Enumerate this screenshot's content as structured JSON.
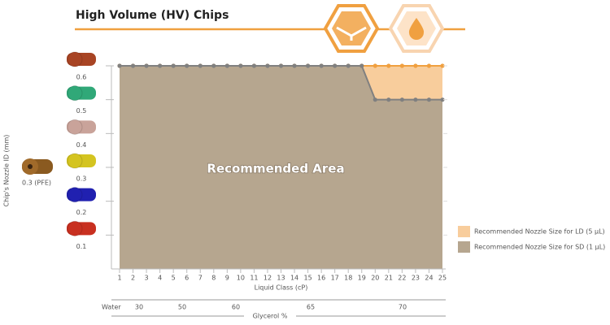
{
  "chart_data": {
    "type": "area",
    "title": "High Volume (HV) Chips",
    "xlabel": "Liquid Class (cP)",
    "ylabel": "Chip's Nozzle ID (mm)",
    "annotation": "Recommended Area",
    "extra_tick_label": "0.3 (PFE)",
    "x": [
      1,
      2,
      3,
      4,
      5,
      6,
      7,
      8,
      9,
      10,
      11,
      12,
      13,
      14,
      15,
      16,
      17,
      18,
      19,
      20,
      21,
      22,
      23,
      24,
      25
    ],
    "xlim": [
      1,
      25
    ],
    "xticks": [
      1,
      2,
      3,
      4,
      5,
      6,
      7,
      8,
      9,
      10,
      11,
      12,
      13,
      14,
      15,
      16,
      17,
      18,
      19,
      20,
      21,
      22,
      23,
      24,
      25
    ],
    "ylim": [
      0,
      0.6
    ],
    "yticks": [
      0.1,
      0.2,
      0.3,
      0.4,
      0.5,
      0.6
    ],
    "series": [
      {
        "name": "Recommended Nozzle Size for LD (5 µL)",
        "color": "#f8cd9c",
        "line_color": "#f0a040",
        "values": [
          0.6,
          0.6,
          0.6,
          0.6,
          0.6,
          0.6,
          0.6,
          0.6,
          0.6,
          0.6,
          0.6,
          0.6,
          0.6,
          0.6,
          0.6,
          0.6,
          0.6,
          0.6,
          0.6,
          0.6,
          0.6,
          0.6,
          0.6,
          0.6,
          0.6
        ]
      },
      {
        "name": "Recommended Nozzle Size for SD (1 µL)",
        "color": "#b6a68f",
        "line_color": "#808080",
        "values": [
          0.6,
          0.6,
          0.6,
          0.6,
          0.6,
          0.6,
          0.6,
          0.6,
          0.6,
          0.6,
          0.6,
          0.6,
          0.6,
          0.6,
          0.6,
          0.6,
          0.6,
          0.6,
          0.6,
          0.5,
          0.5,
          0.5,
          0.5,
          0.5,
          0.5
        ]
      }
    ],
    "legend": "lower right",
    "secondary_scale": {
      "label": "Glycerol %",
      "start_label": "Water",
      "values": [
        30,
        50,
        60,
        65,
        70
      ]
    }
  }
}
